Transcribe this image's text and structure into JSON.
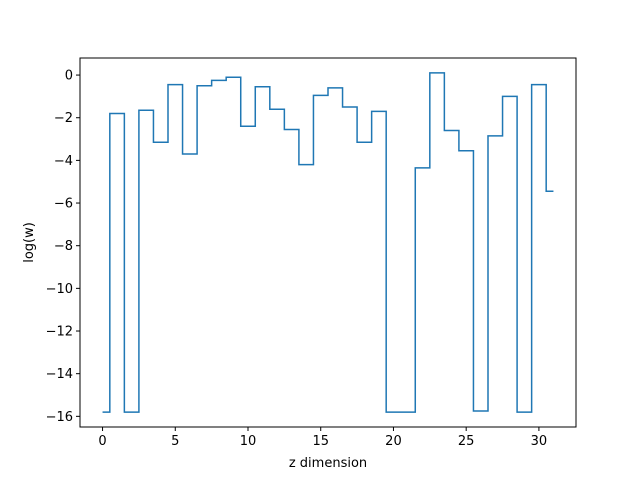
{
  "chart_data": {
    "type": "line",
    "drawstyle": "steps",
    "title": "",
    "xlabel": "z dimension",
    "ylabel": "log(w)",
    "xlim": [
      -1.55,
      32.55
    ],
    "ylim": [
      -16.5,
      0.8
    ],
    "xticks": [
      0,
      5,
      10,
      15,
      20,
      25,
      30
    ],
    "yticks": [
      0,
      -2,
      -4,
      -6,
      -8,
      -10,
      -12,
      -14,
      -16
    ],
    "legend": "none",
    "grid": false,
    "color": "#1f77b4",
    "x": [
      0,
      1,
      2,
      3,
      4,
      5,
      6,
      7,
      8,
      9,
      10,
      11,
      12,
      13,
      14,
      15,
      16,
      17,
      18,
      19,
      20,
      21,
      22,
      23,
      24,
      25,
      26,
      27,
      28,
      29,
      30,
      31
    ],
    "y": [
      -15.8,
      -1.8,
      -15.8,
      -1.65,
      -3.15,
      -0.45,
      -3.7,
      -0.5,
      -0.25,
      -0.1,
      -2.4,
      -0.55,
      -1.6,
      -2.55,
      -4.2,
      -0.95,
      -0.6,
      -1.5,
      -3.15,
      -1.7,
      -15.8,
      -15.8,
      -4.35,
      0.1,
      -2.6,
      -3.55,
      -15.75,
      -2.85,
      -1.0,
      -15.8,
      -0.45,
      -5.45
    ]
  }
}
